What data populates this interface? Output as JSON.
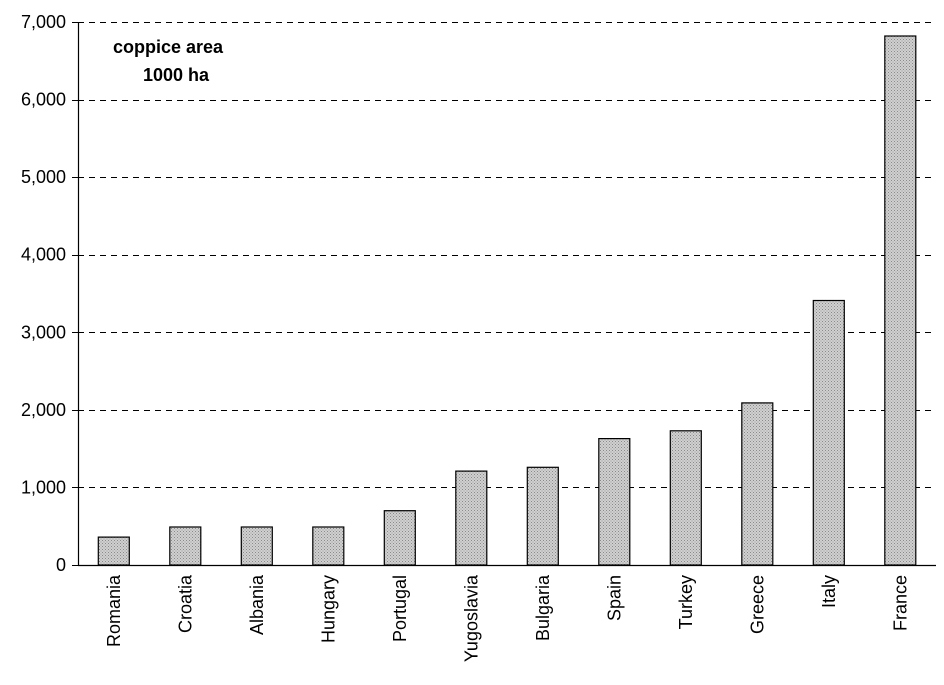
{
  "chart_data": {
    "type": "bar",
    "title": "coppice area",
    "subtitle": "1000 ha",
    "xlabel": "",
    "ylabel": "",
    "categories": [
      "Romania",
      "Croatia",
      "Albania",
      "Hungary",
      "Portugal",
      "Yugoslavia",
      "Bulgaria",
      "Spain",
      "Turkey",
      "Greece",
      "Italy",
      "France"
    ],
    "values": [
      360,
      490,
      490,
      490,
      700,
      1210,
      1260,
      1630,
      1730,
      2090,
      3410,
      6820
    ],
    "ylim": [
      0,
      7000
    ],
    "yticks": [
      0,
      1000,
      2000,
      3000,
      4000,
      5000,
      6000,
      7000
    ],
    "ytick_labels": [
      "0",
      "1,000",
      "2,000",
      "3,000",
      "4,000",
      "5,000",
      "6,000",
      "7,000"
    ],
    "grid": "horizontal-dashed",
    "bar_fill": "#c8c8c8",
    "bar_stroke": "#000000"
  }
}
